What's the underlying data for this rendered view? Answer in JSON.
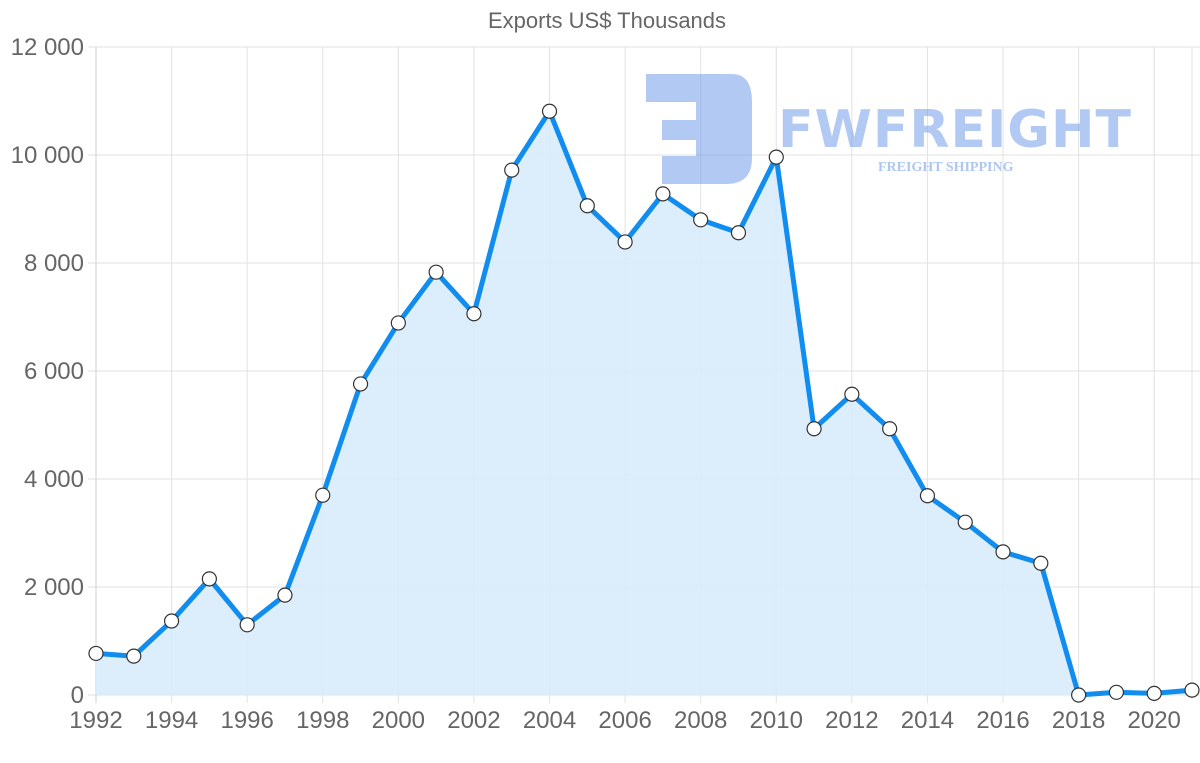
{
  "chart_data": {
    "type": "area",
    "title": "Exports US$ Thousands",
    "xlabel": "",
    "ylabel": "",
    "ylim": [
      0,
      12000
    ],
    "yticks": [
      0,
      2000,
      4000,
      6000,
      8000,
      10000,
      12000
    ],
    "ytick_labels": [
      "0",
      "2 000",
      "4 000",
      "6 000",
      "8 000",
      "10 000",
      "12 000"
    ],
    "xtick_labels": [
      "1992",
      "1994",
      "1996",
      "1998",
      "2000",
      "2002",
      "2004",
      "2006",
      "2008",
      "2010",
      "2012",
      "2014",
      "2016",
      "2018",
      "2020"
    ],
    "grid": true,
    "legend": "none",
    "x": [
      1992,
      1993,
      1994,
      1995,
      1996,
      1997,
      1998,
      1999,
      2000,
      2001,
      2002,
      2003,
      2004,
      2005,
      2006,
      2007,
      2008,
      2009,
      2010,
      2011,
      2012,
      2013,
      2014,
      2015,
      2016,
      2017,
      2018,
      2019,
      2020,
      2021
    ],
    "series": [
      {
        "name": "Exports US$ Thousands",
        "values": [
          770,
          720,
          1370,
          2150,
          1300,
          1850,
          3700,
          5760,
          6890,
          7830,
          7060,
          9720,
          10810,
          9060,
          8390,
          9280,
          8800,
          8560,
          9960,
          4930,
          5570,
          4930,
          3690,
          3200,
          2650,
          2440,
          0,
          50,
          30,
          90
        ]
      }
    ],
    "colors": {
      "line": "#118df0",
      "fill": "#d8ebfc",
      "marker_fill": "#ffffff",
      "marker_stroke": "#333333"
    }
  },
  "watermark": {
    "brand": "FWFREIGHT",
    "tagline": "FREIGHT SHIPPING"
  }
}
